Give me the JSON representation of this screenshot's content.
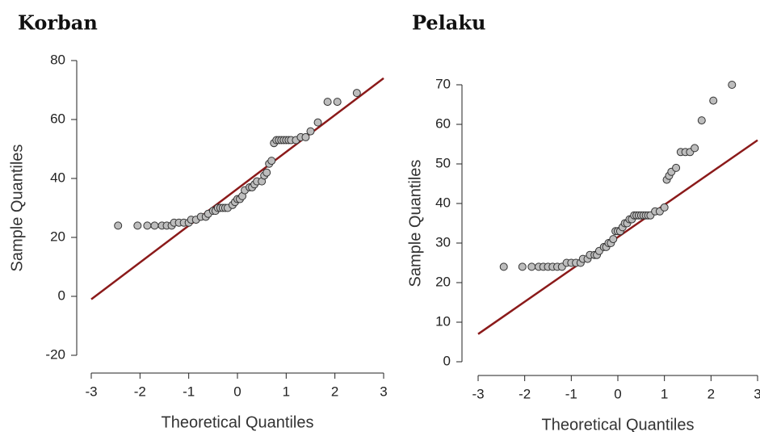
{
  "chart_data": [
    {
      "type": "scatter",
      "title": "Korban",
      "x_label": "Theoretical Quantiles",
      "y_label": "Sample Quantiles",
      "x": [
        -2.45,
        -2.05,
        -1.85,
        -1.7,
        -1.55,
        -1.45,
        -1.35,
        -1.3,
        -1.2,
        -1.1,
        -1.0,
        -0.95,
        -0.85,
        -0.75,
        -0.65,
        -0.6,
        -0.5,
        -0.45,
        -0.4,
        -0.35,
        -0.3,
        -0.25,
        -0.2,
        -0.1,
        -0.05,
        0,
        0.05,
        0.1,
        0.15,
        0.25,
        0.3,
        0.35,
        0.4,
        0.5,
        0.55,
        0.6,
        0.65,
        0.7,
        0.75,
        0.8,
        0.85,
        0.9,
        0.95,
        1.0,
        1.05,
        1.1,
        1.2,
        1.3,
        1.4,
        1.5,
        1.65,
        1.85,
        2.05,
        2.45
      ],
      "values": [
        24,
        24,
        24,
        24,
        24,
        24,
        24,
        25,
        25,
        25,
        25,
        26,
        26,
        27,
        27,
        28,
        29,
        29,
        30,
        30,
        30,
        30,
        30,
        31,
        32,
        33,
        33,
        34,
        36,
        37,
        37,
        38,
        39,
        39,
        41,
        42,
        45,
        46,
        52,
        53,
        53,
        53,
        53,
        53,
        53,
        53,
        53,
        54,
        54,
        56,
        59,
        66,
        66,
        69
      ],
      "color": "#bdbdbd",
      "reference_line": {
        "x": [
          -3,
          3
        ],
        "y": [
          -1,
          74
        ],
        "color": "#8b1a1a"
      },
      "xlim": [
        -3,
        3
      ],
      "ylim": [
        -20,
        80
      ],
      "xticks": [
        -3,
        -2,
        -1,
        0,
        1,
        2,
        3
      ],
      "yticks": [
        -20,
        0,
        20,
        40,
        60,
        80
      ]
    },
    {
      "type": "scatter",
      "title": "Pelaku",
      "x_label": "Theoretical Quantiles",
      "y_label": "Sample Quantiles",
      "x": [
        -2.45,
        -2.05,
        -1.85,
        -1.7,
        -1.6,
        -1.5,
        -1.4,
        -1.3,
        -1.2,
        -1.1,
        -1.0,
        -0.9,
        -0.8,
        -0.75,
        -0.65,
        -0.6,
        -0.5,
        -0.45,
        -0.4,
        -0.3,
        -0.25,
        -0.2,
        -0.15,
        -0.1,
        -0.05,
        0,
        0.05,
        0.1,
        0.15,
        0.2,
        0.25,
        0.3,
        0.35,
        0.4,
        0.45,
        0.5,
        0.55,
        0.6,
        0.65,
        0.7,
        0.8,
        0.9,
        1.0,
        1.05,
        1.1,
        1.15,
        1.25,
        1.35,
        1.45,
        1.55,
        1.65,
        1.8,
        2.05,
        2.45
      ],
      "values": [
        24,
        24,
        24,
        24,
        24,
        24,
        24,
        24,
        24,
        25,
        25,
        25,
        25,
        26,
        26,
        27,
        27,
        27,
        28,
        29,
        29,
        30,
        30,
        31,
        33,
        33,
        33,
        34,
        35,
        35,
        36,
        36,
        37,
        37,
        37,
        37,
        37,
        37,
        37,
        37,
        38,
        38,
        39,
        46,
        47,
        48,
        49,
        53,
        53,
        53,
        54,
        61,
        66,
        70
      ],
      "color": "#bdbdbd",
      "reference_line": {
        "x": [
          -3,
          3
        ],
        "y": [
          7,
          56
        ],
        "color": "#8b1a1a"
      },
      "xlim": [
        -3,
        3
      ],
      "ylim": [
        0,
        70
      ],
      "xticks": [
        -3,
        -2,
        -1,
        0,
        1,
        2,
        3
      ],
      "yticks": [
        0,
        10,
        20,
        30,
        40,
        50,
        60,
        70
      ]
    }
  ]
}
